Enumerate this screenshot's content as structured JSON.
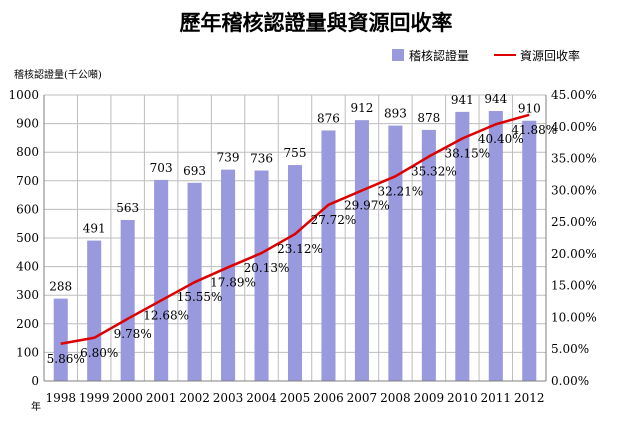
{
  "chart_data": {
    "type": "bar",
    "title": "歷年稽核認證量與資源回收率",
    "ylabel": "稽核認證量(千公噸)",
    "xlabel": "年",
    "categories": [
      "1998",
      "1999",
      "2000",
      "2001",
      "2002",
      "2003",
      "2004",
      "2005",
      "2006",
      "2007",
      "2008",
      "2009",
      "2010",
      "2011",
      "2012"
    ],
    "series": [
      {
        "name": "稽核認證量",
        "type": "bar",
        "axis": "left",
        "color": "#9999dd",
        "values": [
          288,
          491,
          563,
          703,
          693,
          739,
          736,
          755,
          876,
          912,
          893,
          878,
          941,
          944,
          910
        ],
        "labels": [
          "288",
          "491",
          "563",
          "703",
          "693",
          "739",
          "736",
          "755",
          "876",
          "912",
          "893",
          "878",
          "941",
          "944",
          "910"
        ]
      },
      {
        "name": "資源回收率",
        "type": "line",
        "axis": "right",
        "color": "#dd0000",
        "values": [
          5.86,
          6.8,
          9.78,
          12.68,
          15.55,
          17.89,
          20.13,
          23.12,
          27.72,
          29.97,
          32.21,
          35.32,
          38.15,
          40.4,
          41.88
        ],
        "labels": [
          "5.86%",
          "6.80%",
          "9.78%",
          "12.68%",
          "15.55%",
          "17.89%",
          "20.13%",
          "23.12%",
          "27.72%",
          "29.97%",
          "32.21%",
          "35.32%",
          "38.15%",
          "40.40%",
          "41.88%"
        ]
      }
    ],
    "ylim": [
      0,
      1000
    ],
    "y2lim": [
      0,
      45
    ],
    "yticks": [
      "0",
      "100",
      "200",
      "300",
      "400",
      "500",
      "600",
      "700",
      "800",
      "900",
      "1000"
    ],
    "y2ticks": [
      "0.00%",
      "5.00%",
      "10.00%",
      "15.00%",
      "20.00%",
      "25.00%",
      "30.00%",
      "35.00%",
      "40.00%",
      "45.00%"
    ],
    "grid": true,
    "legend": "top-right"
  }
}
